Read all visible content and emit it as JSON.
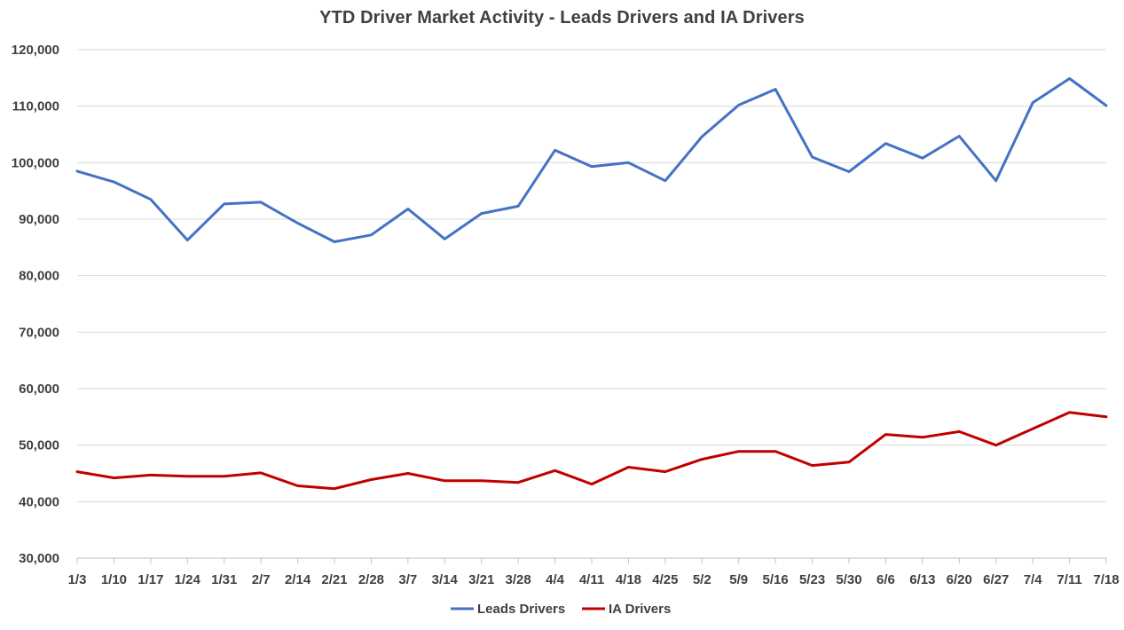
{
  "chart_data": {
    "type": "line",
    "title": "YTD Driver Market Activity - Leads Drivers and IA Drivers",
    "xlabel": "",
    "ylabel": "",
    "ylim": [
      30000,
      120000
    ],
    "y_ticks": [
      "30,000",
      "40,000",
      "50,000",
      "60,000",
      "70,000",
      "80,000",
      "90,000",
      "100,000",
      "110,000",
      "120,000"
    ],
    "grid": true,
    "legend_position": "bottom",
    "categories": [
      "1/3",
      "1/10",
      "1/17",
      "1/24",
      "1/31",
      "2/7",
      "2/14",
      "2/21",
      "2/28",
      "3/7",
      "3/14",
      "3/21",
      "3/28",
      "4/4",
      "4/11",
      "4/18",
      "4/25",
      "5/2",
      "5/9",
      "5/16",
      "5/23",
      "5/30",
      "6/6",
      "6/13",
      "6/20",
      "6/27",
      "7/4",
      "7/11",
      "7/18"
    ],
    "series": [
      {
        "name": "Leads Drivers",
        "color": "#4472C4",
        "values": [
          98500,
          96600,
          93500,
          86300,
          92700,
          93000,
          89300,
          86000,
          87200,
          91800,
          86500,
          91000,
          92300,
          102200,
          99300,
          100000,
          96800,
          104600,
          110200,
          113000,
          101000,
          98400,
          103400,
          100800,
          104700,
          96800,
          110600,
          114900,
          110100
        ]
      },
      {
        "name": "IA Drivers",
        "color": "#C00000",
        "values": [
          45300,
          44200,
          44700,
          44500,
          44500,
          45100,
          42800,
          42300,
          43900,
          45000,
          43700,
          43700,
          43400,
          45500,
          43100,
          46100,
          45300,
          47500,
          48900,
          48900,
          46400,
          47000,
          51900,
          51400,
          52400,
          50000,
          52900,
          55800,
          55000
        ]
      }
    ]
  }
}
